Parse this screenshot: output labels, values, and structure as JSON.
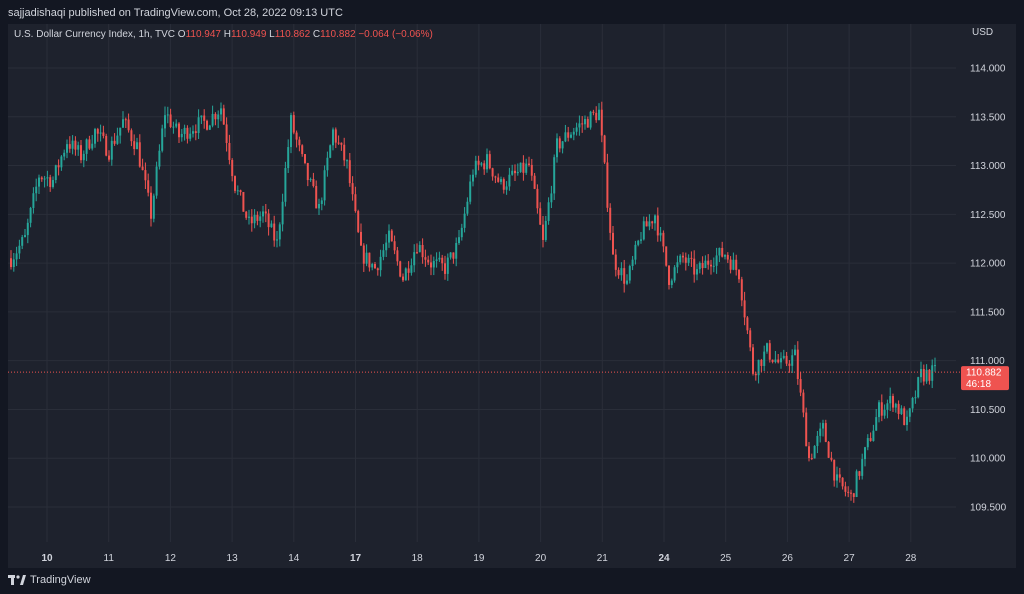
{
  "header": {
    "publish_line": "sajjadishaqi published on TradingView.com, Oct 28, 2022 09:13 UTC"
  },
  "legend": {
    "symbol": "U.S. Dollar Currency Index, 1h, TVC",
    "open_label": "O",
    "open_value": "110.947",
    "high_label": "H",
    "high_value": "110.949",
    "low_label": "L",
    "low_value": "110.862",
    "close_label": "C",
    "close_value": "110.882",
    "change": "−0.064 (−0.06%)"
  },
  "footer": {
    "logo_text": "TradingView"
  },
  "colors": {
    "background": "#131722",
    "pane": "#1e222d",
    "grid": "#2a2e39",
    "up": "#26a69a",
    "down": "#ef5350",
    "text": "#d1d4dc"
  },
  "icons": {
    "logo": "tradingview-logo-icon"
  },
  "chart_data": {
    "type": "candlestick",
    "currency": "USD",
    "grid": true,
    "price_axis": "right",
    "ylim": [
      109.25,
      114.25
    ],
    "y_ticks": [
      "114.000",
      "113.500",
      "113.000",
      "112.500",
      "112.000",
      "111.500",
      "111.000",
      "110.500",
      "110.000",
      "109.500"
    ],
    "x_ticks": [
      {
        "label": "10",
        "bold": true
      },
      {
        "label": "11",
        "bold": false
      },
      {
        "label": "12",
        "bold": false
      },
      {
        "label": "13",
        "bold": false
      },
      {
        "label": "14",
        "bold": false
      },
      {
        "label": "17",
        "bold": true
      },
      {
        "label": "18",
        "bold": false
      },
      {
        "label": "19",
        "bold": false
      },
      {
        "label": "20",
        "bold": false
      },
      {
        "label": "21",
        "bold": false
      },
      {
        "label": "24",
        "bold": true
      },
      {
        "label": "25",
        "bold": false
      },
      {
        "label": "26",
        "bold": false
      },
      {
        "label": "27",
        "bold": false
      },
      {
        "label": "28",
        "bold": false
      }
    ],
    "session_closes": [
      112.05,
      112.25,
      112.9,
      112.85,
      113.25,
      113.1,
      113.35,
      113.15,
      113.45,
      113.2,
      112.5,
      113.55,
      113.3,
      113.4,
      113.45,
      113.6,
      112.8,
      112.4,
      112.5,
      112.2,
      113.45,
      112.95,
      112.55,
      113.35,
      113.0,
      112.1,
      111.95,
      112.25,
      111.85,
      112.2,
      112.0,
      111.95,
      112.2,
      112.95,
      113.05,
      112.8,
      112.9,
      113.0,
      112.2,
      113.2,
      113.35,
      113.45,
      113.55,
      112.05,
      111.8,
      112.3,
      112.5,
      111.85,
      112.05,
      111.9,
      112.05,
      112.1,
      111.9,
      110.9,
      111.1,
      110.95,
      111.05,
      110.0,
      110.3,
      109.75,
      109.6,
      110.05,
      110.5,
      110.6,
      110.35,
      110.85,
      110.88
    ],
    "current_price": "110.882",
    "countdown": "46:18"
  }
}
